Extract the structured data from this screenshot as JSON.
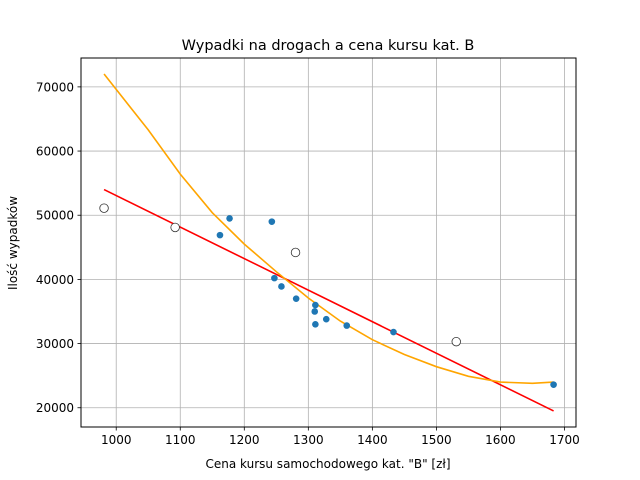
{
  "chart_data": {
    "type": "scatter",
    "title": "Wypadki na drogach a cena kursu kat. B",
    "xlabel": "Cena kursu samochodowego kat. \"B\" [zł]",
    "ylabel": "Ilość wypadków",
    "xlim": [
      945,
      1718
    ],
    "ylim": [
      17000,
      74500
    ],
    "xticks": [
      1000,
      1100,
      1200,
      1300,
      1400,
      1500,
      1600,
      1700
    ],
    "yticks": [
      20000,
      30000,
      40000,
      50000,
      60000,
      70000
    ],
    "grid": true,
    "colors": {
      "points": "#1f77b4",
      "outliers_edge": "#333333",
      "linear_fit": "#ff0000",
      "quadratic_fit": "#ffa500"
    },
    "series": [
      {
        "kind": "scatter",
        "marker": "filled",
        "points": [
          {
            "x": 1162,
            "y": 46900
          },
          {
            "x": 1177,
            "y": 49500
          },
          {
            "x": 1243,
            "y": 49000
          },
          {
            "x": 1247,
            "y": 40200
          },
          {
            "x": 1258,
            "y": 38900
          },
          {
            "x": 1281,
            "y": 37000
          },
          {
            "x": 1310,
            "y": 35000
          },
          {
            "x": 1311,
            "y": 36000
          },
          {
            "x": 1311,
            "y": 33000
          },
          {
            "x": 1328,
            "y": 33800
          },
          {
            "x": 1360,
            "y": 32800
          },
          {
            "x": 1433,
            "y": 31800
          },
          {
            "x": 1683,
            "y": 23600
          }
        ]
      },
      {
        "kind": "scatter",
        "marker": "hollow",
        "points": [
          {
            "x": 981,
            "y": 51100
          },
          {
            "x": 1092,
            "y": 48100
          },
          {
            "x": 1280,
            "y": 44200
          },
          {
            "x": 1531,
            "y": 30300
          }
        ]
      },
      {
        "kind": "line",
        "points": [
          {
            "x": 981,
            "y": 54000
          },
          {
            "x": 1683,
            "y": 19500
          }
        ]
      },
      {
        "kind": "curve",
        "points": [
          {
            "x": 981,
            "y": 72000
          },
          {
            "x": 1050,
            "y": 63300
          },
          {
            "x": 1100,
            "y": 56400
          },
          {
            "x": 1150,
            "y": 50400
          },
          {
            "x": 1200,
            "y": 45500
          },
          {
            "x": 1250,
            "y": 41200
          },
          {
            "x": 1300,
            "y": 37100
          },
          {
            "x": 1350,
            "y": 33500
          },
          {
            "x": 1400,
            "y": 30600
          },
          {
            "x": 1450,
            "y": 28300
          },
          {
            "x": 1500,
            "y": 26400
          },
          {
            "x": 1550,
            "y": 24900
          },
          {
            "x": 1600,
            "y": 24000
          },
          {
            "x": 1650,
            "y": 23800
          },
          {
            "x": 1683,
            "y": 24000
          }
        ]
      }
    ]
  }
}
